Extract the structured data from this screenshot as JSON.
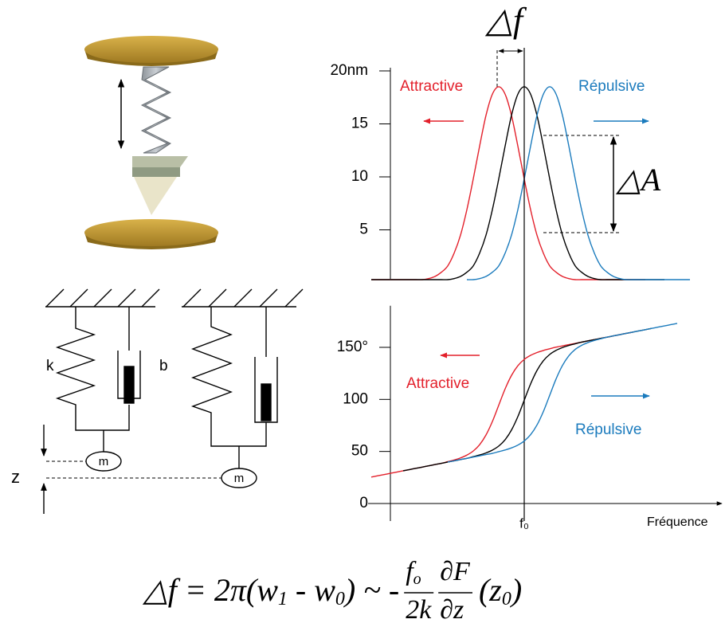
{
  "chart_data": [
    {
      "type": "line",
      "x": [
        -6,
        -4,
        -2,
        0,
        2,
        4,
        6,
        8,
        10,
        12,
        14,
        16,
        18,
        20,
        22,
        24,
        26,
        28,
        30,
        32,
        34,
        36,
        38,
        40,
        42,
        44,
        46,
        48,
        50,
        52,
        54,
        56,
        58,
        60,
        62,
        64,
        66,
        68,
        70,
        72,
        74,
        76,
        78,
        80,
        82,
        84,
        86,
        88,
        90,
        92,
        94
      ],
      "series": [
        {
          "name": "Attractive",
          "color": "#e3202b",
          "values": [
            0.3,
            0.3,
            0.3,
            0.3,
            0.3,
            0.3,
            0.3,
            0.3,
            0.3,
            0.4,
            0.6,
            1.0,
            1.6,
            2.8,
            4.5,
            6.9,
            9.8,
            12.9,
            15.8,
            17.8,
            18.5,
            17.8,
            15.8,
            12.9,
            9.8,
            6.9,
            4.5,
            2.8,
            1.6,
            1.0,
            0.6,
            0.4,
            0.3,
            0.3,
            0.3,
            0.3,
            0.3,
            0.3,
            0.3,
            0.3,
            0.3,
            0.3,
            0.3,
            0.3,
            null,
            null,
            null,
            null,
            null,
            null,
            null
          ]
        },
        {
          "color": "#000000",
          "values": [
            0.3,
            0.3,
            0.3,
            0.3,
            0.3,
            0.3,
            0.3,
            0.3,
            0.3,
            0.3,
            0.3,
            0.3,
            0.3,
            0.4,
            0.6,
            1.0,
            1.6,
            2.8,
            4.5,
            6.9,
            9.8,
            12.9,
            15.8,
            17.8,
            18.5,
            17.8,
            15.8,
            12.9,
            9.8,
            6.9,
            4.5,
            2.8,
            1.6,
            1.0,
            0.6,
            0.4,
            0.3,
            0.3,
            0.3,
            0.3,
            0.3,
            0.3,
            0.3,
            0.3,
            0.3,
            0.3,
            0.3,
            null,
            null,
            null,
            null
          ]
        },
        {
          "name": "Répulsive",
          "color": "#1b7bbd",
          "values": [
            null,
            null,
            null,
            null,
            null,
            null,
            null,
            null,
            null,
            null,
            null,
            null,
            null,
            null,
            null,
            0.3,
            0.3,
            0.4,
            0.6,
            1.0,
            1.6,
            2.8,
            4.5,
            6.9,
            9.8,
            12.9,
            15.8,
            17.8,
            18.5,
            17.8,
            15.8,
            12.9,
            9.8,
            6.9,
            4.5,
            2.8,
            1.6,
            1.0,
            0.6,
            0.4,
            0.3,
            0.3,
            0.3,
            0.3,
            0.3,
            0.3,
            0.3,
            0.3,
            0.3,
            0.3,
            0.3
          ]
        }
      ],
      "xlim": [
        -6,
        96
      ],
      "ylim": [
        0,
        20.3
      ],
      "yticks": [
        {
          "value": 20,
          "label": "20nm"
        },
        15,
        10,
        5
      ],
      "annotations": {
        "attractive": "Attractive",
        "repulsive": "Répulsive",
        "delta_a": "△A",
        "delta_f": "△f"
      }
    },
    {
      "type": "line",
      "x": [
        -6,
        -4,
        -2,
        0,
        2,
        4,
        6,
        8,
        10,
        12,
        14,
        16,
        18,
        20,
        22,
        24,
        26,
        28,
        30,
        32,
        34,
        36,
        38,
        40,
        42,
        44,
        46,
        48,
        50,
        52,
        54,
        56,
        58,
        60,
        62,
        64,
        66,
        68,
        70,
        72,
        74,
        76,
        78,
        80,
        82,
        84,
        86,
        88,
        90
      ],
      "series": [
        {
          "name": "Attractive",
          "color": "#e3202b",
          "values": [
            25.4,
            26.6,
            27.8,
            29,
            30.2,
            31.4,
            32.6,
            33.8,
            35,
            36.2,
            37.4,
            38.6,
            40.2,
            41.8,
            43.8,
            46.5,
            50.4,
            56.5,
            65.8,
            78.7,
            94.4,
            110.1,
            123,
            132.3,
            138.4,
            142.3,
            145,
            147,
            148.6,
            150.2,
            151.4,
            152.6,
            153.8,
            155,
            156.2,
            157.4,
            158.6,
            159.8,
            161,
            162.2,
            163.4,
            164.6,
            null,
            null,
            null,
            null,
            null,
            null,
            null
          ]
        },
        {
          "color": "#000000",
          "values": [
            null,
            null,
            null,
            null,
            null,
            31.4,
            32.6,
            33.8,
            35,
            36.2,
            37.4,
            38.6,
            39.8,
            41,
            42.2,
            43.4,
            45,
            46.6,
            48.6,
            51.3,
            55.2,
            61.3,
            70.6,
            83.5,
            99.2,
            114.9,
            127.8,
            137.1,
            143.2,
            147.1,
            149.8,
            151.8,
            153.4,
            155,
            156.2,
            157.4,
            158.6,
            159.8,
            161,
            162.2,
            163.4,
            164.6,
            165.8,
            167,
            168.2,
            null,
            null,
            null,
            null
          ]
        },
        {
          "name": "Répulsive",
          "color": "#1b7bbd",
          "values": [
            null,
            null,
            null,
            null,
            null,
            null,
            null,
            null,
            null,
            null,
            null,
            null,
            39.8,
            41,
            42.2,
            43.4,
            44.6,
            45.8,
            47,
            48.2,
            49.8,
            51.4,
            53.4,
            56.1,
            60,
            66.1,
            75.4,
            88.3,
            104,
            119.7,
            132.6,
            141.9,
            148,
            151.9,
            154.6,
            156.6,
            158.2,
            159.8,
            161,
            162.2,
            163.4,
            164.6,
            165.8,
            167,
            168.2,
            169.4,
            170.6,
            171.8,
            173
          ]
        }
      ],
      "xlim": [
        -7,
        104
      ],
      "ylim": [
        0,
        190
      ],
      "yticks": [
        {
          "value": 150,
          "label": "150°"
        },
        100,
        50,
        0
      ],
      "xticks": [
        {
          "value": 42,
          "label": "f₀"
        }
      ],
      "xlabel": "Fréquence",
      "annotations": {
        "attractive": "Attractive",
        "repulsive": "Répulsive"
      }
    }
  ],
  "diagram": {
    "spring": "k",
    "damper": "b",
    "mass_1": "m",
    "mass_2": "m",
    "position": "z"
  },
  "equation": {
    "lhs": "△f = 2π(w",
    "sub1": "1",
    "minus": " -  w",
    "sub0": "0",
    "approx": ") ~ - ",
    "num1": "f",
    "num1_sub": "o",
    "den1": "2k",
    "num2": "∂F",
    "den2": "∂z",
    "tail": "(z",
    "tail_sub": "0",
    "close": ")"
  }
}
